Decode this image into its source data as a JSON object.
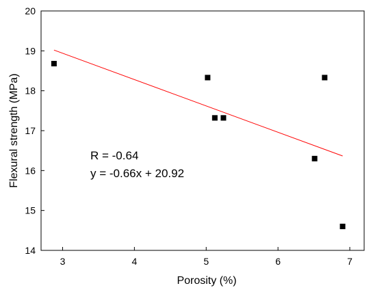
{
  "chart_data": {
    "type": "scatter",
    "title": "",
    "xlabel": "Porosity (%)",
    "ylabel": "Flexural strength (MPa)",
    "xlim": [
      2.7,
      7.2
    ],
    "ylim": [
      14,
      20
    ],
    "xticks": [
      3,
      4,
      5,
      6,
      7
    ],
    "yticks": [
      14,
      15,
      16,
      17,
      18,
      19,
      20
    ],
    "grid": false,
    "marker": "square",
    "marker_color": "#000000",
    "points": [
      {
        "x": 2.88,
        "y": 18.68
      },
      {
        "x": 5.02,
        "y": 18.33
      },
      {
        "x": 5.12,
        "y": 17.32
      },
      {
        "x": 5.24,
        "y": 17.32
      },
      {
        "x": 6.51,
        "y": 16.3
      },
      {
        "x": 6.65,
        "y": 18.33
      },
      {
        "x": 6.9,
        "y": 14.6
      }
    ],
    "fit_line": {
      "color": "#ff0000",
      "x_start": 2.88,
      "x_end": 6.9,
      "slope": -0.66,
      "intercept": 20.92
    },
    "annotations": [
      "R = -0.64",
      "y = -0.66x + 20.92"
    ]
  }
}
